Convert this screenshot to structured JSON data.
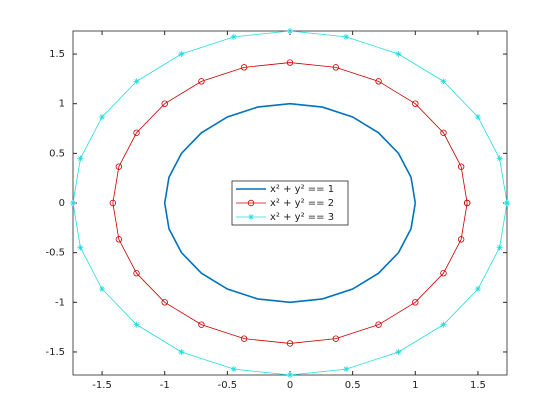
{
  "chart_data": {
    "type": "line",
    "xlim": [
      -1.732,
      1.732
    ],
    "ylim": [
      -1.732,
      1.732
    ],
    "xticks": [
      -1.5,
      -1,
      -0.5,
      0,
      0.5,
      1,
      1.5
    ],
    "yticks": [
      -1.5,
      -1,
      -0.5,
      0,
      0.5,
      1,
      1.5
    ],
    "legend": "center",
    "series": [
      {
        "name": "x² + y² == 1",
        "color": "#0072bd",
        "marker": "none",
        "x": [
          1,
          0.966,
          0.866,
          0.707,
          0.5,
          0.259,
          0,
          -0.259,
          -0.5,
          -0.707,
          -0.866,
          -0.966,
          -1,
          -0.966,
          -0.866,
          -0.707,
          -0.5,
          -0.259,
          0,
          0.259,
          0.5,
          0.707,
          0.866,
          0.966,
          1
        ],
        "values": [
          0,
          0.259,
          0.5,
          0.707,
          0.866,
          0.966,
          1,
          0.966,
          0.866,
          0.707,
          0.5,
          0.259,
          0,
          -0.259,
          -0.5,
          -0.707,
          -0.866,
          -0.966,
          -1,
          -0.966,
          -0.866,
          -0.707,
          -0.5,
          -0.259,
          0
        ]
      },
      {
        "name": "x² + y² == 2",
        "color": "#cc0000",
        "marker": "circle",
        "x": [
          1.414,
          1.366,
          1.225,
          1,
          0.707,
          0.366,
          0,
          -0.366,
          -0.707,
          -1,
          -1.225,
          -1.366,
          -1.414,
          -1.366,
          -1.225,
          -1,
          -0.707,
          -0.366,
          0,
          0.366,
          0.707,
          1,
          1.225,
          1.366,
          1.414
        ],
        "values": [
          0,
          0.366,
          0.707,
          1,
          1.225,
          1.366,
          1.414,
          1.366,
          1.225,
          1,
          0.707,
          0.366,
          0,
          -0.366,
          -0.707,
          -1,
          -1.225,
          -1.366,
          -1.414,
          -1.366,
          -1.225,
          -1,
          -0.707,
          -0.366,
          0
        ]
      },
      {
        "name": "x² + y² == 3",
        "color": "#22dddd",
        "marker": "star",
        "x": [
          1.732,
          1.673,
          1.5,
          1.225,
          0.866,
          0.448,
          0,
          -0.448,
          -0.866,
          -1.225,
          -1.5,
          -1.673,
          -1.732,
          -1.673,
          -1.5,
          -1.225,
          -0.866,
          -0.448,
          0,
          0.448,
          0.866,
          1.225,
          1.5,
          1.673,
          1.732
        ],
        "values": [
          0,
          0.448,
          0.866,
          1.225,
          1.5,
          1.673,
          1.732,
          1.673,
          1.5,
          1.225,
          0.866,
          0.448,
          0,
          -0.448,
          -0.866,
          -1.225,
          -1.5,
          -1.673,
          -1.732,
          -1.673,
          -1.5,
          -1.225,
          -0.866,
          -0.448,
          0
        ]
      }
    ]
  }
}
